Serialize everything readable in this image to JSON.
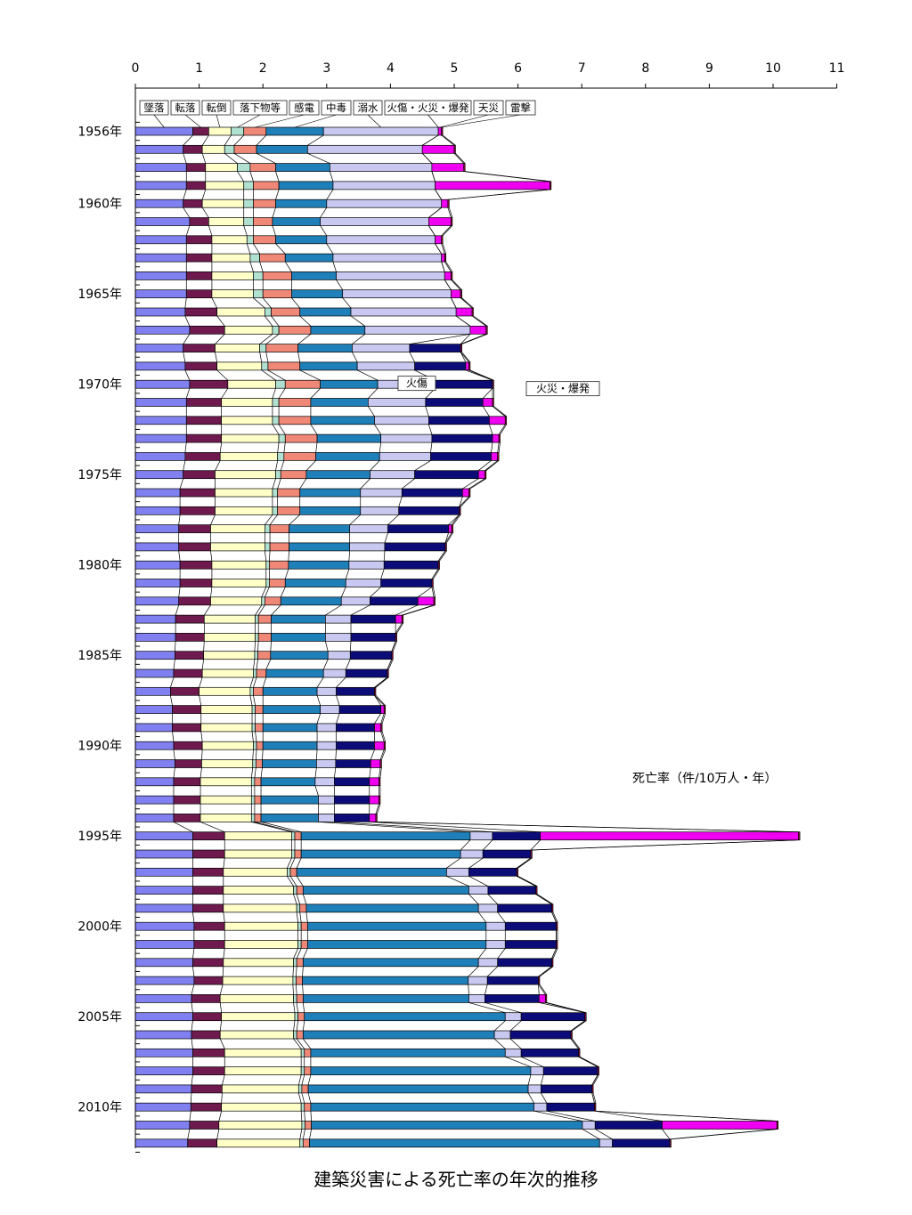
{
  "chart_data": {
    "type": "bar",
    "orientation": "horizontal",
    "stacked": true,
    "title": "建築災害による死亡率の年次的推移",
    "unit_label": "死亡率（件/10万人・年）",
    "xlim": [
      0,
      11
    ],
    "x_ticks": [
      "0",
      "1",
      "2",
      "3",
      "4",
      "5",
      "6",
      "7",
      "8",
      "9",
      "10",
      "11"
    ],
    "y_tick_labels": [
      "1956年",
      "1960年",
      "1965年",
      "1970年",
      "1975年",
      "1980年",
      "1985年",
      "1990年",
      "1995年",
      "2000年",
      "2005年",
      "2010年"
    ],
    "years": [
      1956,
      1957,
      1958,
      1959,
      1960,
      1961,
      1962,
      1963,
      1964,
      1965,
      1966,
      1967,
      1968,
      1969,
      1970,
      1971,
      1972,
      1973,
      1974,
      1975,
      1976,
      1977,
      1978,
      1979,
      1980,
      1981,
      1982,
      1983,
      1984,
      1985,
      1986,
      1987,
      1988,
      1989,
      1990,
      1991,
      1992,
      1993,
      1994,
      1995,
      1996,
      1997,
      1998,
      1999,
      2000,
      2001,
      2002,
      2003,
      2004,
      2005,
      2006,
      2007,
      2008,
      2009,
      2010,
      2011,
      2012
    ],
    "series": [
      {
        "name": "墜落",
        "color": "#8080f0",
        "values": [
          0.9,
          0.75,
          0.8,
          0.8,
          0.75,
          0.85,
          0.8,
          0.8,
          0.8,
          0.8,
          0.78,
          0.85,
          0.75,
          0.78,
          0.85,
          0.8,
          0.8,
          0.8,
          0.78,
          0.75,
          0.7,
          0.7,
          0.68,
          0.68,
          0.7,
          0.7,
          0.68,
          0.63,
          0.63,
          0.62,
          0.6,
          0.55,
          0.58,
          0.58,
          0.6,
          0.62,
          0.6,
          0.6,
          0.6,
          0.9,
          0.9,
          0.9,
          0.9,
          0.9,
          0.92,
          0.92,
          0.9,
          0.92,
          0.88,
          0.9,
          0.88,
          0.9,
          0.9,
          0.88,
          0.87,
          0.85,
          0.82
        ]
      },
      {
        "name": "転落",
        "color": "#6e1a4e",
        "values": [
          0.25,
          0.3,
          0.3,
          0.3,
          0.3,
          0.3,
          0.4,
          0.4,
          0.4,
          0.4,
          0.5,
          0.55,
          0.5,
          0.5,
          0.6,
          0.55,
          0.55,
          0.55,
          0.55,
          0.5,
          0.55,
          0.55,
          0.5,
          0.5,
          0.5,
          0.5,
          0.5,
          0.45,
          0.45,
          0.45,
          0.45,
          0.45,
          0.45,
          0.45,
          0.45,
          0.42,
          0.42,
          0.42,
          0.42,
          0.5,
          0.5,
          0.48,
          0.48,
          0.48,
          0.48,
          0.48,
          0.48,
          0.45,
          0.45,
          0.45,
          0.45,
          0.5,
          0.5,
          0.48,
          0.48,
          0.46,
          0.46
        ]
      },
      {
        "name": "転倒",
        "color": "#ffffc8",
        "values": [
          0.35,
          0.35,
          0.5,
          0.6,
          0.65,
          0.55,
          0.55,
          0.6,
          0.65,
          0.65,
          0.75,
          0.75,
          0.7,
          0.7,
          0.75,
          0.8,
          0.8,
          0.9,
          0.9,
          0.95,
          0.9,
          0.9,
          0.85,
          0.85,
          0.85,
          0.85,
          0.8,
          0.8,
          0.8,
          0.8,
          0.8,
          0.8,
          0.8,
          0.8,
          0.8,
          0.8,
          0.8,
          0.8,
          0.8,
          1.05,
          1.05,
          1.0,
          1.1,
          1.15,
          1.15,
          1.15,
          1.1,
          1.1,
          1.15,
          1.15,
          1.15,
          1.2,
          1.2,
          1.2,
          1.25,
          1.3,
          1.3
        ]
      },
      {
        "name": "落下物等",
        "color": "#b0e0d0",
        "values": [
          0.2,
          0.15,
          0.2,
          0.15,
          0.15,
          0.15,
          0.1,
          0.15,
          0.15,
          0.15,
          0.1,
          0.1,
          0.1,
          0.1,
          0.15,
          0.1,
          0.1,
          0.1,
          0.1,
          0.08,
          0.08,
          0.08,
          0.08,
          0.08,
          0.05,
          0.05,
          0.05,
          0.05,
          0.05,
          0.05,
          0.05,
          0.05,
          0.05,
          0.05,
          0.05,
          0.05,
          0.05,
          0.05,
          0.05,
          0.05,
          0.05,
          0.05,
          0.05,
          0.05,
          0.05,
          0.05,
          0.05,
          0.05,
          0.05,
          0.05,
          0.05,
          0.05,
          0.05,
          0.05,
          0.05,
          0.05,
          0.05
        ]
      },
      {
        "name": "感電",
        "color": "#f08878",
        "values": [
          0.35,
          0.35,
          0.4,
          0.4,
          0.35,
          0.3,
          0.35,
          0.4,
          0.45,
          0.45,
          0.45,
          0.5,
          0.5,
          0.5,
          0.55,
          0.5,
          0.5,
          0.5,
          0.5,
          0.4,
          0.35,
          0.35,
          0.3,
          0.3,
          0.3,
          0.25,
          0.25,
          0.2,
          0.2,
          0.2,
          0.15,
          0.15,
          0.12,
          0.12,
          0.1,
          0.1,
          0.1,
          0.1,
          0.1,
          0.1,
          0.1,
          0.1,
          0.1,
          0.1,
          0.1,
          0.1,
          0.1,
          0.1,
          0.1,
          0.1,
          0.1,
          0.1,
          0.1,
          0.1,
          0.1,
          0.1,
          0.1
        ]
      },
      {
        "name": "中毒",
        "color": "#1f7fb8",
        "values": [
          0.9,
          0.8,
          0.85,
          0.85,
          0.8,
          0.75,
          0.8,
          0.75,
          0.7,
          0.8,
          0.8,
          0.85,
          0.85,
          0.9,
          0.9,
          0.9,
          1.0,
          1.0,
          1.0,
          1.0,
          0.95,
          0.95,
          0.95,
          0.95,
          0.95,
          0.95,
          0.95,
          0.85,
          0.85,
          0.9,
          0.9,
          0.85,
          0.9,
          0.85,
          0.85,
          0.85,
          0.85,
          0.9,
          0.9,
          2.65,
          2.5,
          2.35,
          2.6,
          2.7,
          2.8,
          2.8,
          2.75,
          2.6,
          2.6,
          3.15,
          3.0,
          3.05,
          3.45,
          3.45,
          3.5,
          4.25,
          4.55
        ]
      },
      {
        "name": "溺水",
        "color": "#c8c8f0",
        "values": [
          1.8,
          1.8,
          1.6,
          1.6,
          1.8,
          1.7,
          1.7,
          1.7,
          1.7,
          1.7,
          1.65,
          1.65,
          0.9,
          0.9,
          0.9,
          0.9,
          0.85,
          0.8,
          0.8,
          0.7,
          0.65,
          0.6,
          0.6,
          0.55,
          0.55,
          0.55,
          0.45,
          0.4,
          0.4,
          0.35,
          0.35,
          0.3,
          0.3,
          0.3,
          0.3,
          0.3,
          0.3,
          0.25,
          0.25,
          0.35,
          0.35,
          0.35,
          0.3,
          0.3,
          0.3,
          0.3,
          0.3,
          0.3,
          0.25,
          0.25,
          0.25,
          0.25,
          0.2,
          0.2,
          0.2,
          0.2,
          0.2
        ]
      },
      {
        "name": "火傷・火災・爆発",
        "color": "#0c0c78",
        "values": [
          0,
          0,
          0,
          0,
          0,
          0,
          0,
          0,
          0,
          0,
          0,
          0,
          0.8,
          0.8,
          0.9,
          0.9,
          0.95,
          0.95,
          0.95,
          1.0,
          0.95,
          0.95,
          0.95,
          0.95,
          0.85,
          0.8,
          0.75,
          0.7,
          0.7,
          0.65,
          0.65,
          0.6,
          0.65,
          0.6,
          0.6,
          0.55,
          0.55,
          0.55,
          0.55,
          0.75,
          0.75,
          0.75,
          0.75,
          0.85,
          0.8,
          0.8,
          0.85,
          0.8,
          0.85,
          1.0,
          0.95,
          0.9,
          0.85,
          0.8,
          0.75,
          1.05,
          0.9
        ]
      },
      {
        "name": "天災",
        "color": "#f000f0",
        "values": [
          0.05,
          0.5,
          0.5,
          1.8,
          0.1,
          0.35,
          0.1,
          0.05,
          0.1,
          0.15,
          0.25,
          0.25,
          0,
          0.05,
          0,
          0.15,
          0.25,
          0.1,
          0.1,
          0.1,
          0.1,
          0,
          0.05,
          0,
          0,
          0,
          0.25,
          0.1,
          0,
          0,
          0,
          0,
          0.05,
          0.1,
          0.15,
          0.15,
          0.15,
          0.15,
          0.1,
          4.05,
          0,
          0,
          0,
          0,
          0,
          0,
          0,
          0,
          0.1,
          0,
          0,
          0,
          0,
          0,
          0,
          1.8,
          0
        ]
      },
      {
        "name": "雷撃",
        "color": "#a01040",
        "values": [
          0.02,
          0.02,
          0.02,
          0.02,
          0.02,
          0.02,
          0.02,
          0.02,
          0.02,
          0.02,
          0.02,
          0.02,
          0.02,
          0.02,
          0.02,
          0.02,
          0.02,
          0.02,
          0.02,
          0.02,
          0.02,
          0.02,
          0.02,
          0.02,
          0.02,
          0.02,
          0.02,
          0.02,
          0.02,
          0.02,
          0.02,
          0.02,
          0.02,
          0.02,
          0.02,
          0.02,
          0.02,
          0.02,
          0.02,
          0.02,
          0.02,
          0.02,
          0.02,
          0.02,
          0.02,
          0.02,
          0.02,
          0.02,
          0.02,
          0.02,
          0.02,
          0.02,
          0.02,
          0.02,
          0.02,
          0.02,
          0.02
        ]
      }
    ],
    "legend_labels": [
      "墜落",
      "転落",
      "転倒",
      "落下物等",
      "感電",
      "中毒",
      "溺水",
      "火傷・火災・爆発",
      "天災",
      "雷撃"
    ],
    "annotations": [
      "火傷",
      "火災・爆発"
    ],
    "legend_placement": "top, inside plot, labels with leader lines to 1956 bar",
    "grid": false
  }
}
